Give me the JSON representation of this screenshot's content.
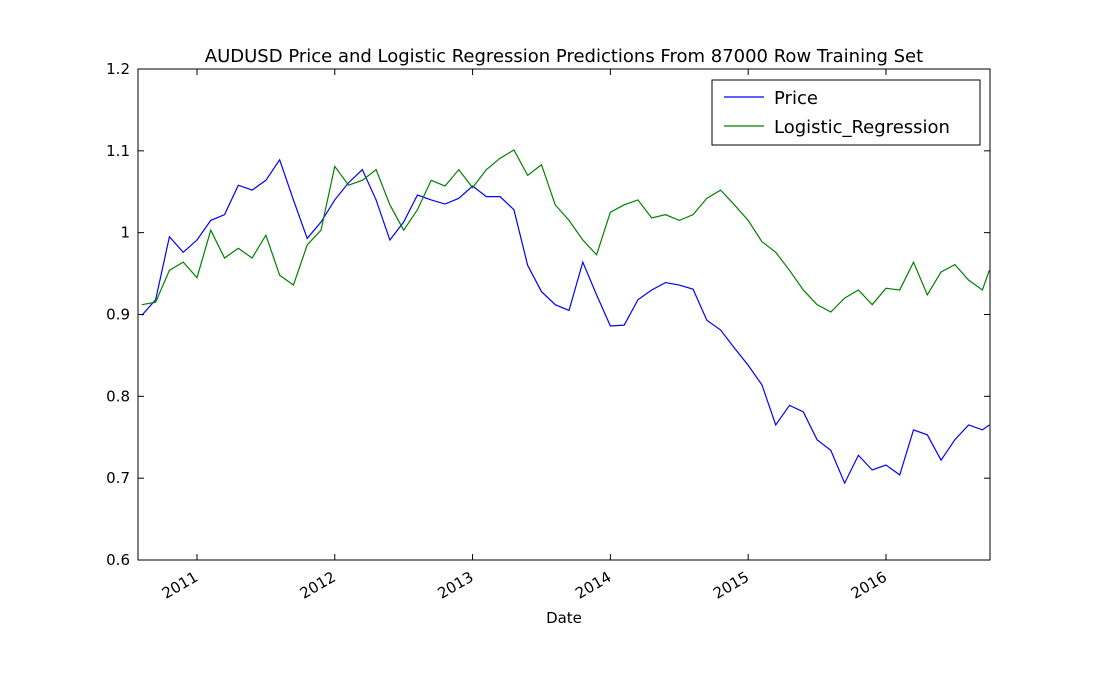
{
  "chart_data": {
    "type": "line",
    "title": "AUDUSD Price and Logistic Regression Predictions From 87000 Row Training Set",
    "x_label": "Date",
    "x": [
      2010.6,
      2010.7,
      2010.8,
      2010.9,
      2011.0,
      2011.1,
      2011.2,
      2011.3,
      2011.4,
      2011.5,
      2011.6,
      2011.7,
      2011.8,
      2011.9,
      2012.0,
      2012.1,
      2012.2,
      2012.3,
      2012.4,
      2012.5,
      2012.6,
      2012.7,
      2012.8,
      2012.9,
      2013.0,
      2013.1,
      2013.2,
      2013.3,
      2013.4,
      2013.5,
      2013.6,
      2013.7,
      2013.8,
      2013.9,
      2014.0,
      2014.1,
      2014.2,
      2014.3,
      2014.4,
      2014.5,
      2014.6,
      2014.7,
      2014.8,
      2014.9,
      2015.0,
      2015.1,
      2015.2,
      2015.3,
      2015.4,
      2015.5,
      2015.6,
      2015.7,
      2015.8,
      2015.9,
      2016.0,
      2016.1,
      2016.2,
      2016.3,
      2016.4,
      2016.5,
      2016.6,
      2016.7,
      2016.75
    ],
    "series": [
      {
        "name": "Price",
        "color": "#0000ff",
        "values": [
          0.899,
          0.918,
          0.995,
          0.976,
          0.991,
          1.015,
          1.022,
          1.058,
          1.052,
          1.064,
          1.089,
          1.04,
          0.993,
          1.013,
          1.04,
          1.061,
          1.077,
          1.04,
          0.991,
          1.013,
          1.046,
          1.04,
          1.035,
          1.042,
          1.057,
          1.044,
          1.044,
          1.028,
          0.96,
          0.928,
          0.912,
          0.905,
          0.964,
          0.924,
          0.886,
          0.887,
          0.918,
          0.93,
          0.939,
          0.936,
          0.931,
          0.893,
          0.881,
          0.859,
          0.838,
          0.814,
          0.765,
          0.789,
          0.781,
          0.747,
          0.734,
          0.694,
          0.728,
          0.71,
          0.716,
          0.704,
          0.759,
          0.753,
          0.722,
          0.747,
          0.765,
          0.759,
          0.765
        ]
      },
      {
        "name": "Logistic_Regression",
        "color": "#008000",
        "values": [
          0.912,
          0.915,
          0.954,
          0.964,
          0.945,
          1.003,
          0.969,
          0.981,
          0.969,
          0.997,
          0.948,
          0.936,
          0.985,
          1.003,
          1.081,
          1.058,
          1.064,
          1.077,
          1.034,
          1.003,
          1.028,
          1.064,
          1.057,
          1.077,
          1.055,
          1.077,
          1.091,
          1.101,
          1.07,
          1.083,
          1.034,
          1.015,
          0.991,
          0.973,
          1.025,
          1.034,
          1.04,
          1.018,
          1.022,
          1.015,
          1.022,
          1.042,
          1.052,
          1.034,
          1.015,
          0.989,
          0.976,
          0.954,
          0.93,
          0.912,
          0.903,
          0.92,
          0.93,
          0.912,
          0.932,
          0.93,
          0.964,
          0.924,
          0.952,
          0.961,
          0.942,
          0.93,
          0.954
        ]
      }
    ],
    "xlim": [
      2010.572,
      2016.755
    ],
    "xticks": [
      2011,
      2012,
      2013,
      2014,
      2015,
      2016
    ],
    "ylim": [
      0.6,
      1.2
    ],
    "yticks": [
      0.6,
      0.7,
      0.8,
      0.9,
      1.0,
      1.1,
      1.2
    ],
    "legend": "upper right"
  }
}
